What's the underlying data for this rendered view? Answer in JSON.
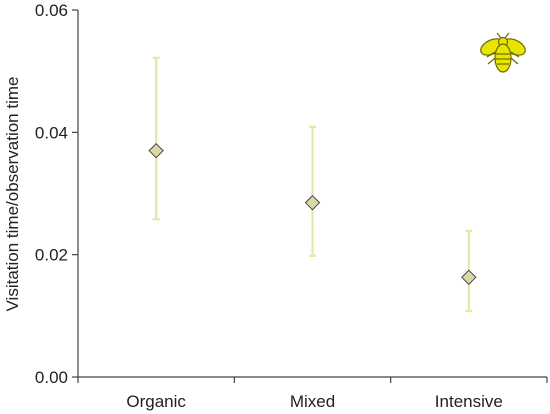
{
  "chart_data": {
    "type": "scatter",
    "title": "",
    "xlabel": "",
    "ylabel": "Visitation time/observation time",
    "categories": [
      "Organic",
      "Mixed",
      "Intensive"
    ],
    "series": [
      {
        "values": [
          0.037,
          0.0285,
          0.0163
        ],
        "error_low": [
          0.0258,
          0.0198,
          0.0108
        ],
        "error_high": [
          0.0522,
          0.0409,
          0.0239
        ]
      }
    ],
    "ylim": [
      0,
      0.06
    ],
    "yticks": [
      0,
      0.02,
      0.04,
      0.06
    ],
    "ytick_labels": [
      "0.00",
      "0.02",
      "0.04",
      "0.06"
    ],
    "grid": false,
    "legend": "none",
    "icon": "bee-icon",
    "colors": {
      "marker_fill": "#d9d9a6",
      "marker_stroke": "#444444",
      "error_bar": "#e6e6a6",
      "axis": "#444444",
      "bee": "#e6e600"
    }
  }
}
